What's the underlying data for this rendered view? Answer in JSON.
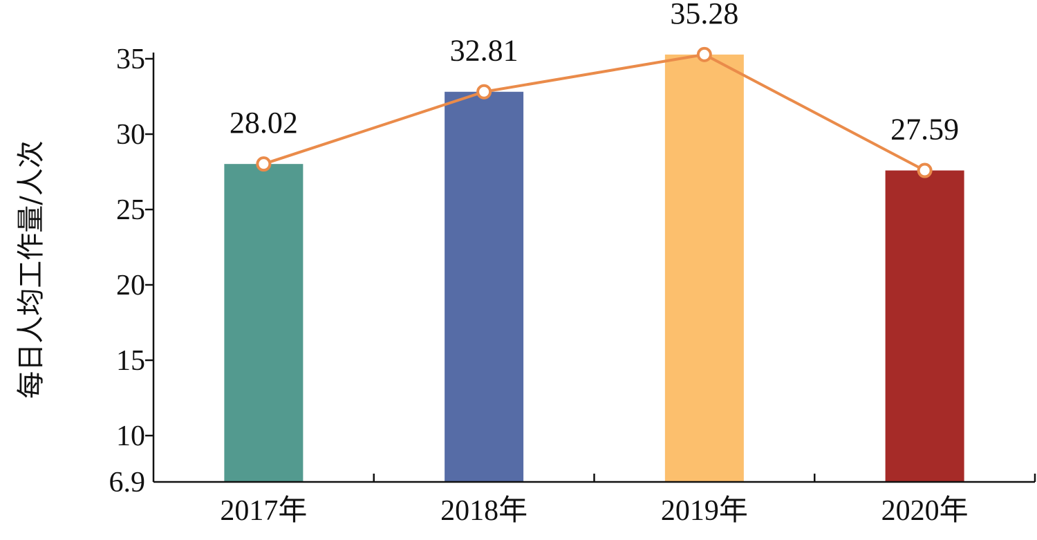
{
  "chart_data": {
    "type": "bar",
    "title": "",
    "xlabel": "",
    "ylabel": "每日人均工作量/人次",
    "categories": [
      "2017年",
      "2018年",
      "2019年",
      "2020年"
    ],
    "values": [
      28.02,
      32.81,
      35.28,
      27.59
    ],
    "data_labels": [
      "28.02",
      "32.81",
      "35.28",
      "27.59"
    ],
    "bar_colors": [
      "#539a8f",
      "#566ca6",
      "#fcbf6d",
      "#a62b28"
    ],
    "line_overlay": {
      "type": "line",
      "values": [
        28.02,
        32.81,
        35.28,
        27.59
      ],
      "color": "#ea8b4a",
      "marker": "hollow-circle"
    },
    "ylim": [
      6.9,
      36
    ],
    "yticks": [
      6.9,
      10,
      15,
      20,
      25,
      30,
      35
    ],
    "ytick_labels": [
      "6.9",
      "10",
      "15",
      "20",
      "25",
      "30",
      "35"
    ],
    "grid": false,
    "legend": "none"
  }
}
